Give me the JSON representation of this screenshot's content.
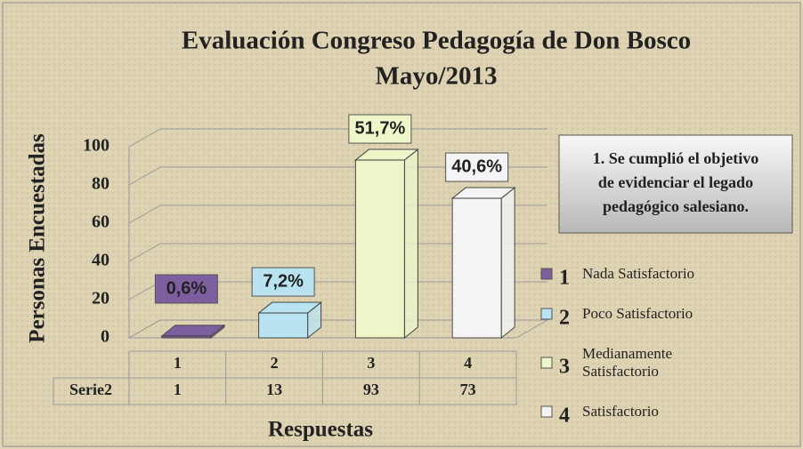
{
  "chart_data": {
    "type": "bar3d",
    "title": "Evaluación Congreso Pedagogía de Don Bosco",
    "subtitle": "Mayo/2013",
    "y_label": "Personas Encuestadas",
    "x_label": "Respuestas",
    "categories": [
      "1",
      "2",
      "3",
      "4"
    ],
    "series": [
      {
        "name": "Serie2",
        "values": [
          1,
          13,
          93,
          73
        ],
        "value_labels": [
          "0,6%",
          "7,2%",
          "51,7%",
          "40,6%"
        ]
      }
    ],
    "colors": [
      "#7d5fa0",
      "#b9e3f0",
      "#eef5c8",
      "#f4f4f4"
    ],
    "ylim": [
      0,
      100
    ],
    "yticks": [
      0,
      20,
      40,
      60,
      80,
      100
    ],
    "grid": true,
    "annotation": [
      "1. Se cumplió el objetivo",
      "de evidenciar el legado",
      "pedagógico salesiano."
    ],
    "legend": [
      {
        "key": "1",
        "label": "Nada Satisfactorio"
      },
      {
        "key": "2",
        "label": "Poco Satisfactorio"
      },
      {
        "key": "3",
        "label": "Medianamente Satisfactorio"
      },
      {
        "key": "4",
        "label": "Satisfactorio"
      }
    ]
  }
}
